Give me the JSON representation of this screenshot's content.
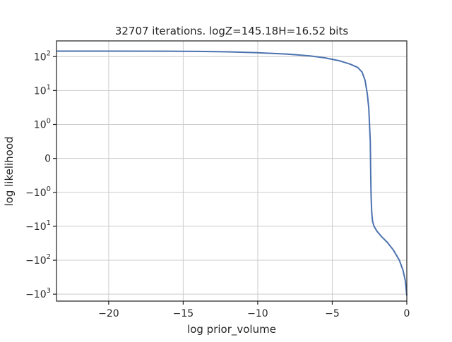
{
  "chart_data": {
    "type": "line",
    "title": "32707 iterations. logZ=145.18H=16.52 bits",
    "xlabel": "log prior_volume",
    "ylabel": "log likelihood",
    "xscale": "linear",
    "yscale": "symlog",
    "yscale_linthresh": 1,
    "xlim": [
      -23.5,
      0
    ],
    "grid": true,
    "xticks": [
      {
        "value": -20,
        "label": "−20"
      },
      {
        "value": -15,
        "label": "−15"
      },
      {
        "value": -10,
        "label": "−10"
      },
      {
        "value": -5,
        "label": "−5"
      },
      {
        "value": 0,
        "label": "0"
      }
    ],
    "yticks": [
      {
        "value": 100,
        "base": "10",
        "exp": "2"
      },
      {
        "value": 10,
        "base": "10",
        "exp": "1"
      },
      {
        "value": 1,
        "base": "10",
        "exp": "0"
      },
      {
        "value": 0,
        "base": "0",
        "exp": ""
      },
      {
        "value": -1,
        "base": "−10",
        "exp": "0"
      },
      {
        "value": -10,
        "base": "−10",
        "exp": "1"
      },
      {
        "value": -100,
        "base": "−10",
        "exp": "2"
      },
      {
        "value": -1000,
        "base": "−10",
        "exp": "3"
      }
    ],
    "series": [
      {
        "color": "#4c72b0",
        "x": [
          -23.5,
          -20,
          -16,
          -14,
          -12,
          -10,
          -8,
          -6.5,
          -5.5,
          -4.5,
          -3.8,
          -3.3,
          -3.0,
          -2.8,
          -2.65,
          -2.55,
          -2.45,
          -2.42,
          -2.4,
          -2.38,
          -2.35,
          -2.3,
          -2.2,
          -2.0,
          -1.7,
          -1.3,
          -0.9,
          -0.5,
          -0.25,
          -0.1,
          0
        ],
        "y": [
          145.2,
          145,
          144,
          142,
          138,
          130,
          118,
          105,
          92,
          75,
          60,
          48,
          35,
          20,
          8,
          3,
          0.5,
          -0.5,
          -1,
          -2,
          -4,
          -7,
          -10,
          -14,
          -20,
          -30,
          -50,
          -100,
          -200,
          -400,
          -1100
        ]
      }
    ]
  }
}
